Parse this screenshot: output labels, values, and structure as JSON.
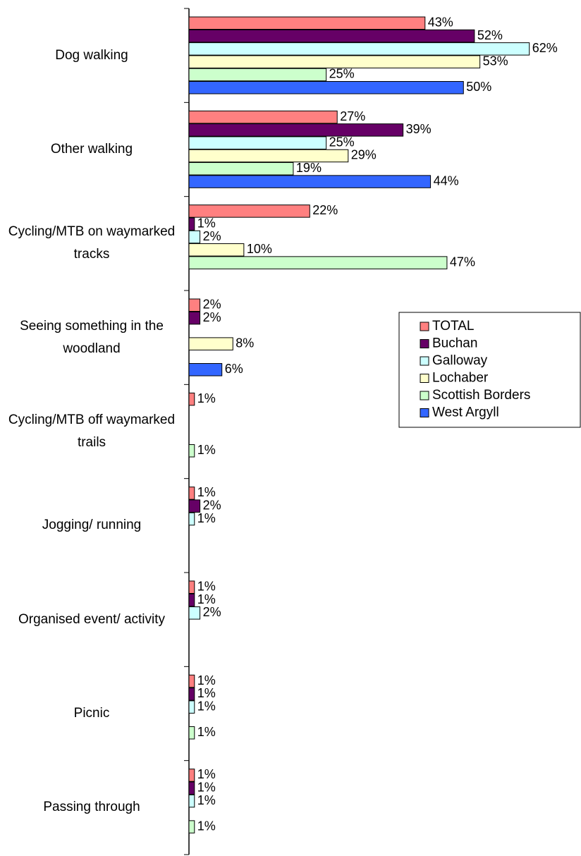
{
  "chart_data": {
    "type": "bar",
    "orientation": "horizontal",
    "categories": [
      "Dog walking",
      "Other walking",
      "Cycling/MTB on waymarked tracks",
      "Seeing something in the woodland",
      "Cycling/MTB off waymarked trails",
      "Jogging/ running",
      "Organised event/ activity",
      "Picnic",
      "Passing through"
    ],
    "series": [
      {
        "name": "TOTAL",
        "color": "#ff8080",
        "values": [
          43,
          27,
          22,
          2,
          1,
          1,
          1,
          1,
          1
        ],
        "value_labels": [
          "43%",
          "27%",
          "22%",
          "2%",
          "1%",
          "1%",
          "1%",
          "1%",
          "1%"
        ]
      },
      {
        "name": "Buchan",
        "color": "#660066",
        "values": [
          52,
          39,
          1,
          2,
          null,
          2,
          1,
          1,
          1
        ],
        "value_labels": [
          "52%",
          "39%",
          "1%",
          "2%",
          null,
          "2%",
          "1%",
          "1%",
          "1%"
        ]
      },
      {
        "name": "Galloway",
        "color": "#ccffff",
        "values": [
          62,
          25,
          2,
          null,
          null,
          1,
          2,
          1,
          1
        ],
        "value_labels": [
          "62%",
          "25%",
          "2%",
          null,
          null,
          "1%",
          "2%",
          "1%",
          "1%"
        ]
      },
      {
        "name": "Lochaber",
        "color": "#ffffcc",
        "values": [
          53,
          29,
          10,
          8,
          null,
          null,
          null,
          null,
          null
        ],
        "value_labels": [
          "53%",
          "29%",
          "10%",
          "8%",
          null,
          null,
          null,
          null,
          null
        ]
      },
      {
        "name": "Scottish Borders",
        "color": "#ccffcc",
        "values": [
          25,
          19,
          47,
          null,
          1,
          null,
          null,
          1,
          1
        ],
        "value_labels": [
          "25%",
          "19%",
          "47%",
          null,
          "1%",
          null,
          null,
          "1%",
          "1%"
        ]
      },
      {
        "name": "West Argyll",
        "color": "#3366ff",
        "values": [
          50,
          44,
          null,
          6,
          null,
          null,
          null,
          null,
          null
        ],
        "value_labels": [
          "50%",
          "44%",
          null,
          "6%",
          null,
          null,
          null,
          null,
          null
        ]
      }
    ],
    "xlim": [
      0,
      70
    ],
    "legend": "right"
  }
}
